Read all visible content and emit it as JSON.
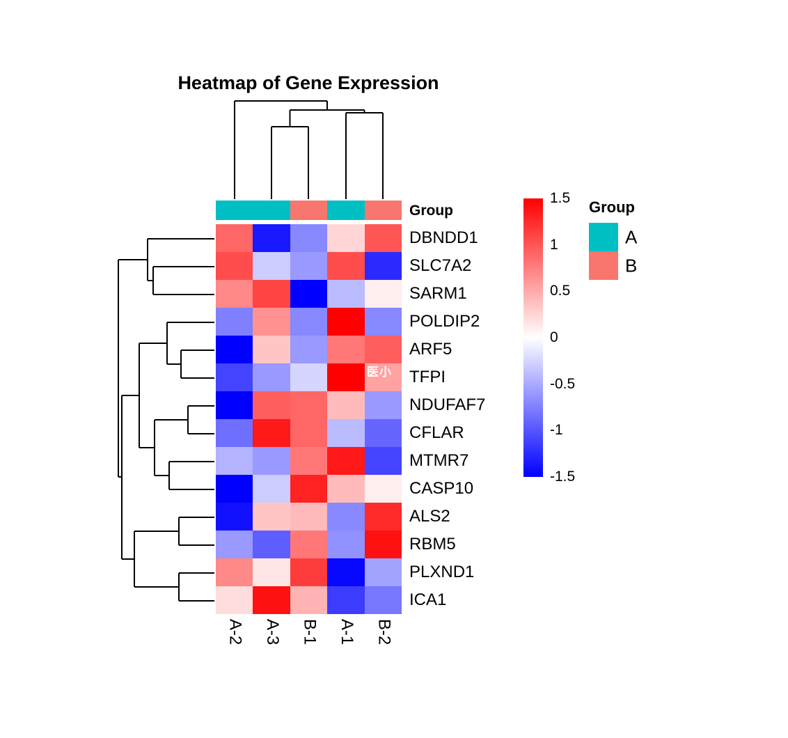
{
  "title": "Heatmap of Gene Expression",
  "watermark": "医小",
  "annotation_row_label": "Group",
  "legend": {
    "title": "Group",
    "items": [
      {
        "label": "A",
        "color": "#00BFC4"
      },
      {
        "label": "B",
        "color": "#F8766D"
      }
    ]
  },
  "colorbar": {
    "tick_labels": [
      "1.5",
      "1",
      "0.5",
      "0",
      "-0.5",
      "-1",
      "-1.5"
    ],
    "tick_values": [
      1.5,
      1,
      0.5,
      0,
      -0.5,
      -1,
      -1.5
    ]
  },
  "chart_data": {
    "type": "heatmap",
    "title": "Heatmap of Gene Expression",
    "columns": [
      "A-2",
      "A-3",
      "B-1",
      "A-1",
      "B-2"
    ],
    "column_groups": [
      "A",
      "A",
      "B",
      "A",
      "B"
    ],
    "group_colors": {
      "A": "#00BFC4",
      "B": "#F8766D"
    },
    "rows": [
      "DBNDD1",
      "SLC7A2",
      "SARM1",
      "POLDIP2",
      "ARF5",
      "TFPI",
      "NDUFAF7",
      "CFLAR",
      "MTMR7",
      "CASP10",
      "ALS2",
      "RBM5",
      "PLXND1",
      "ICA1"
    ],
    "values": [
      [
        0.9,
        -1.35,
        -0.7,
        0.25,
        1.0
      ],
      [
        1.05,
        -0.3,
        -0.6,
        1.05,
        -1.25
      ],
      [
        0.7,
        1.1,
        -1.5,
        -0.4,
        0.1
      ],
      [
        -0.75,
        0.65,
        -0.7,
        1.5,
        -0.7
      ],
      [
        -1.5,
        0.35,
        -0.6,
        0.8,
        0.95
      ],
      [
        -1.1,
        -0.6,
        -0.25,
        1.5,
        0.55
      ],
      [
        -1.5,
        0.95,
        0.9,
        0.4,
        -0.6
      ],
      [
        -0.85,
        1.35,
        0.9,
        -0.4,
        -0.9
      ],
      [
        -0.45,
        -0.6,
        0.8,
        1.35,
        -1.1
      ],
      [
        -1.5,
        -0.3,
        1.3,
        0.4,
        0.1
      ],
      [
        -1.4,
        0.35,
        0.4,
        -0.7,
        1.25
      ],
      [
        -0.6,
        -0.95,
        0.8,
        -0.65,
        1.4
      ],
      [
        0.7,
        0.15,
        1.15,
        -1.45,
        -0.55
      ],
      [
        0.2,
        1.4,
        0.45,
        -1.15,
        -0.8
      ]
    ],
    "scale": {
      "min": -1.5,
      "mid": 0,
      "max": 1.5,
      "min_color": "#0000FF",
      "mid_color": "#FFFFFF",
      "max_color": "#FF0000"
    },
    "column_dendrogram_order": [
      "A-2",
      [
        "A-3",
        "B-1"
      ],
      [
        "A-1",
        "B-2"
      ]
    ],
    "row_dendrogram_topology": [
      [
        "DBNDD1",
        [
          "SLC7A2",
          "SARM1"
        ]
      ],
      [
        [
          [
            "POLDIP2",
            [
              "ARF5",
              "TFPI"
            ]
          ],
          [
            [
              "NDUFAF7",
              "CFLAR"
            ],
            [
              "MTMR7",
              "CASP10"
            ]
          ]
        ],
        [
          [
            "ALS2",
            "RBM5"
          ],
          [
            "PLXND1",
            "ICA1"
          ]
        ]
      ]
    ],
    "column_dendrogram_segments": [
      [
        337,
        145,
        470,
        145
      ],
      [
        470,
        145,
        470,
        158
      ],
      [
        416.5,
        158,
        523.5,
        158
      ],
      [
        416.5,
        158,
        416.5,
        182
      ],
      [
        390,
        182,
        443,
        182
      ],
      [
        523.5,
        158,
        523.5,
        162
      ],
      [
        497,
        162,
        550,
        162
      ],
      [
        337,
        145,
        337,
        286
      ],
      [
        390,
        182,
        390,
        286
      ],
      [
        443,
        182,
        443,
        286
      ],
      [
        497,
        162,
        497,
        286
      ],
      [
        550,
        162,
        550,
        286
      ]
    ],
    "row_dendrogram_segments": [
      [
        212,
        343,
        308,
        343
      ],
      [
        220,
        383,
        308,
        383
      ],
      [
        220,
        423,
        308,
        423
      ],
      [
        240,
        463,
        308,
        463
      ],
      [
        260,
        503,
        308,
        503
      ],
      [
        260,
        543,
        308,
        543
      ],
      [
        270,
        583,
        308,
        583
      ],
      [
        270,
        623,
        308,
        623
      ],
      [
        243,
        663,
        308,
        663
      ],
      [
        243,
        703,
        308,
        703
      ],
      [
        257,
        743,
        308,
        743
      ],
      [
        257,
        783,
        308,
        783
      ],
      [
        257,
        823,
        308,
        823
      ],
      [
        257,
        863,
        308,
        863
      ],
      [
        220,
        383,
        220,
        423
      ],
      [
        212,
        343,
        212,
        403
      ],
      [
        212,
        403,
        220,
        403
      ],
      [
        260,
        503,
        260,
        543
      ],
      [
        240,
        463,
        240,
        523
      ],
      [
        240,
        523,
        260,
        523
      ],
      [
        270,
        583,
        270,
        623
      ],
      [
        243,
        663,
        243,
        703
      ],
      [
        222,
        603,
        222,
        683
      ],
      [
        222,
        603,
        270,
        603
      ],
      [
        222,
        683,
        243,
        683
      ],
      [
        200,
        493,
        200,
        643
      ],
      [
        200,
        493,
        240,
        493
      ],
      [
        200,
        643,
        222,
        643
      ],
      [
        257,
        743,
        257,
        783
      ],
      [
        257,
        823,
        257,
        863
      ],
      [
        193,
        763,
        193,
        843
      ],
      [
        193,
        763,
        257,
        763
      ],
      [
        193,
        843,
        257,
        843
      ],
      [
        175,
        568,
        175,
        803
      ],
      [
        175,
        568,
        200,
        568
      ],
      [
        175,
        803,
        193,
        803
      ],
      [
        170,
        373,
        170,
        685
      ],
      [
        170,
        373,
        212,
        373
      ],
      [
        170,
        685,
        175,
        685
      ]
    ]
  }
}
